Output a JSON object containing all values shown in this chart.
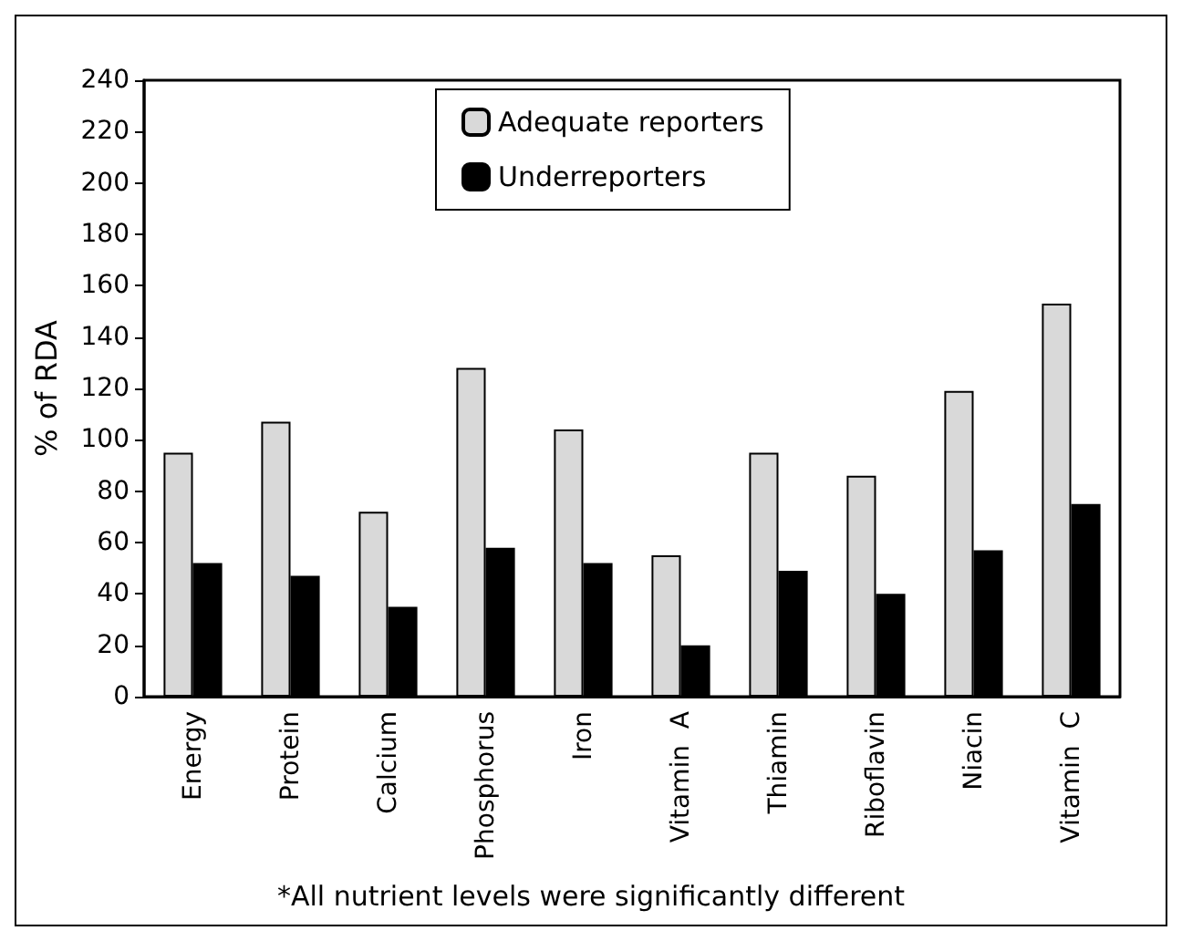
{
  "chart_data": {
    "type": "bar",
    "ylabel": "% of RDA",
    "categories": [
      "Energy",
      "Protein",
      "Calcium",
      "Phosphorus",
      "Iron",
      "Vitamin  A",
      "Thiamin",
      "Riboflavin",
      "Niacin",
      "Vitamin  C"
    ],
    "series": [
      {
        "name": "Adequate reporters",
        "color": "#d9d9d9",
        "values": [
          95,
          107,
          72,
          128,
          104,
          55,
          95,
          86,
          119,
          153
        ]
      },
      {
        "name": "Underreporters",
        "color": "#000000",
        "values": [
          52,
          47,
          35,
          58,
          52,
          20,
          49,
          40,
          57,
          75
        ]
      }
    ],
    "ylim": [
      0,
      240
    ],
    "yticks": [
      0,
      20,
      40,
      60,
      80,
      100,
      120,
      140,
      160,
      180,
      200,
      220,
      240
    ],
    "grid": false,
    "legend": "top",
    "annotations": [
      "*All nutrient levels were significantly different"
    ]
  }
}
